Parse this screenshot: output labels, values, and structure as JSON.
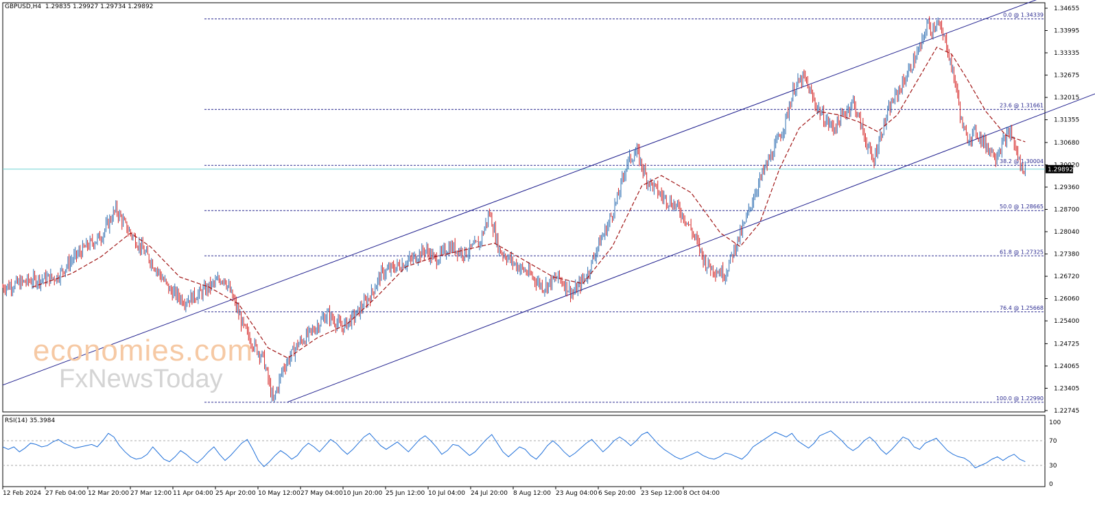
{
  "header": {
    "symbol": "GBPUSD,H4",
    "open": "1.29835",
    "high": "1.29927",
    "low": "1.29734",
    "close": "1.29892"
  },
  "watermark": {
    "line1": "economies.com",
    "line2": "FxNewsToday"
  },
  "rsi": {
    "label": "RSI(14) 35.3984"
  },
  "chart_data": [
    {
      "type": "candlestick",
      "title": "GBPUSD,H4 1.29835 1.29927 1.29734 1.29892",
      "ylim": [
        1.22745,
        1.34655
      ],
      "y_ticks": [
        "1.34655",
        "1.33995",
        "1.33335",
        "1.32675",
        "1.32015",
        "1.31355",
        "1.30680",
        "1.30020",
        "1.29360",
        "1.28700",
        "1.28040",
        "1.27380",
        "1.26720",
        "1.26060",
        "1.25400",
        "1.24725",
        "1.24065",
        "1.23405",
        "1.22745"
      ],
      "x_labels": [
        "12 Feb 2024",
        "27 Feb 04:00",
        "12 Mar 20:00",
        "27 Mar 12:00",
        "11 Apr 04:00",
        "25 Apr 20:00",
        "10 May 12:00",
        "27 May 04:00",
        "10 Jun 20:00",
        "25 Jun 12:00",
        "10 Jul 04:00",
        "24 Jul 20:00",
        "8 Aug 12:00",
        "23 Aug 04:00",
        "6 Sep 20:00",
        "23 Sep 12:00",
        "8 Oct 04:00"
      ],
      "current_price": "1.29892",
      "price_path": [
        {
          "x": 0,
          "y": 1.264
        },
        {
          "x": 6,
          "y": 1.266
        },
        {
          "x": 11,
          "y": 1.267
        },
        {
          "x": 14,
          "y": 1.272
        },
        {
          "x": 17,
          "y": 1.276
        },
        {
          "x": 20,
          "y": 1.279
        },
        {
          "x": 23,
          "y": 1.287
        },
        {
          "x": 25,
          "y": 1.282
        },
        {
          "x": 28,
          "y": 1.276
        },
        {
          "x": 31,
          "y": 1.27
        },
        {
          "x": 34,
          "y": 1.263
        },
        {
          "x": 37,
          "y": 1.26
        },
        {
          "x": 40,
          "y": 1.262
        },
        {
          "x": 43,
          "y": 1.265
        },
        {
          "x": 45,
          "y": 1.267
        },
        {
          "x": 47,
          "y": 1.26
        },
        {
          "x": 49,
          "y": 1.252
        },
        {
          "x": 51,
          "y": 1.247
        },
        {
          "x": 53,
          "y": 1.243
        },
        {
          "x": 55,
          "y": 1.23
        },
        {
          "x": 57,
          "y": 1.24
        },
        {
          "x": 60,
          "y": 1.247
        },
        {
          "x": 63,
          "y": 1.251
        },
        {
          "x": 66,
          "y": 1.256
        },
        {
          "x": 69,
          "y": 1.252
        },
        {
          "x": 72,
          "y": 1.256
        },
        {
          "x": 75,
          "y": 1.262
        },
        {
          "x": 77,
          "y": 1.268
        },
        {
          "x": 80,
          "y": 1.27
        },
        {
          "x": 83,
          "y": 1.272
        },
        {
          "x": 86,
          "y": 1.275
        },
        {
          "x": 88,
          "y": 1.272
        },
        {
          "x": 91,
          "y": 1.276
        },
        {
          "x": 94,
          "y": 1.274
        },
        {
          "x": 97,
          "y": 1.277
        },
        {
          "x": 99,
          "y": 1.286
        },
        {
          "x": 101,
          "y": 1.275
        },
        {
          "x": 104,
          "y": 1.271
        },
        {
          "x": 107,
          "y": 1.268
        },
        {
          "x": 110,
          "y": 1.264
        },
        {
          "x": 113,
          "y": 1.267
        },
        {
          "x": 116,
          "y": 1.262
        },
        {
          "x": 119,
          "y": 1.268
        },
        {
          "x": 121,
          "y": 1.276
        },
        {
          "x": 123,
          "y": 1.282
        },
        {
          "x": 125,
          "y": 1.29
        },
        {
          "x": 127,
          "y": 1.301
        },
        {
          "x": 129,
          "y": 1.304
        },
        {
          "x": 131,
          "y": 1.296
        },
        {
          "x": 134,
          "y": 1.291
        },
        {
          "x": 137,
          "y": 1.288
        },
        {
          "x": 139,
          "y": 1.284
        },
        {
          "x": 141,
          "y": 1.278
        },
        {
          "x": 143,
          "y": 1.271
        },
        {
          "x": 145,
          "y": 1.269
        },
        {
          "x": 147,
          "y": 1.268
        },
        {
          "x": 149,
          "y": 1.276
        },
        {
          "x": 151,
          "y": 1.283
        },
        {
          "x": 153,
          "y": 1.292
        },
        {
          "x": 155,
          "y": 1.299
        },
        {
          "x": 157,
          "y": 1.305
        },
        {
          "x": 159,
          "y": 1.312
        },
        {
          "x": 161,
          "y": 1.323
        },
        {
          "x": 163,
          "y": 1.326
        },
        {
          "x": 165,
          "y": 1.319
        },
        {
          "x": 167,
          "y": 1.314
        },
        {
          "x": 169,
          "y": 1.311
        },
        {
          "x": 171,
          "y": 1.315
        },
        {
          "x": 173,
          "y": 1.319
        },
        {
          "x": 175,
          "y": 1.31
        },
        {
          "x": 177,
          "y": 1.301
        },
        {
          "x": 179,
          "y": 1.311
        },
        {
          "x": 181,
          "y": 1.319
        },
        {
          "x": 183,
          "y": 1.324
        },
        {
          "x": 185,
          "y": 1.33
        },
        {
          "x": 187,
          "y": 1.336
        },
        {
          "x": 188,
          "y": 1.342
        },
        {
          "x": 189,
          "y": 1.34
        },
        {
          "x": 190,
          "y": 1.343
        },
        {
          "x": 191,
          "y": 1.339
        },
        {
          "x": 192,
          "y": 1.336
        },
        {
          "x": 193,
          "y": 1.329
        },
        {
          "x": 194,
          "y": 1.323
        },
        {
          "x": 195,
          "y": 1.313
        },
        {
          "x": 196,
          "y": 1.308
        },
        {
          "x": 198,
          "y": 1.31
        },
        {
          "x": 200,
          "y": 1.306
        },
        {
          "x": 202,
          "y": 1.303
        },
        {
          "x": 204,
          "y": 1.308
        },
        {
          "x": 205,
          "y": 1.31
        },
        {
          "x": 206,
          "y": 1.305
        },
        {
          "x": 207,
          "y": 1.3
        },
        {
          "x": 208,
          "y": 1.2989
        }
      ],
      "moving_average": [
        {
          "x": 6,
          "y": 1.264
        },
        {
          "x": 14,
          "y": 1.268
        },
        {
          "x": 20,
          "y": 1.273
        },
        {
          "x": 26,
          "y": 1.28
        },
        {
          "x": 30,
          "y": 1.276
        },
        {
          "x": 36,
          "y": 1.267
        },
        {
          "x": 42,
          "y": 1.264
        },
        {
          "x": 48,
          "y": 1.259
        },
        {
          "x": 54,
          "y": 1.246
        },
        {
          "x": 58,
          "y": 1.243
        },
        {
          "x": 64,
          "y": 1.249
        },
        {
          "x": 70,
          "y": 1.253
        },
        {
          "x": 76,
          "y": 1.261
        },
        {
          "x": 82,
          "y": 1.27
        },
        {
          "x": 88,
          "y": 1.273
        },
        {
          "x": 94,
          "y": 1.275
        },
        {
          "x": 100,
          "y": 1.277
        },
        {
          "x": 106,
          "y": 1.272
        },
        {
          "x": 112,
          "y": 1.267
        },
        {
          "x": 118,
          "y": 1.265
        },
        {
          "x": 124,
          "y": 1.276
        },
        {
          "x": 130,
          "y": 1.294
        },
        {
          "x": 134,
          "y": 1.297
        },
        {
          "x": 140,
          "y": 1.292
        },
        {
          "x": 146,
          "y": 1.28
        },
        {
          "x": 150,
          "y": 1.276
        },
        {
          "x": 154,
          "y": 1.283
        },
        {
          "x": 158,
          "y": 1.299
        },
        {
          "x": 162,
          "y": 1.311
        },
        {
          "x": 166,
          "y": 1.316
        },
        {
          "x": 170,
          "y": 1.315
        },
        {
          "x": 174,
          "y": 1.313
        },
        {
          "x": 178,
          "y": 1.31
        },
        {
          "x": 182,
          "y": 1.315
        },
        {
          "x": 186,
          "y": 1.325
        },
        {
          "x": 190,
          "y": 1.335
        },
        {
          "x": 193,
          "y": 1.333
        },
        {
          "x": 196,
          "y": 1.326
        },
        {
          "x": 200,
          "y": 1.316
        },
        {
          "x": 204,
          "y": 1.309
        },
        {
          "x": 208,
          "y": 1.307
        }
      ],
      "fibonacci_levels": [
        {
          "label": "0.0 @ 1.34339",
          "price": 1.34339
        },
        {
          "label": "23.6 @ 1.31661",
          "price": 1.31661
        },
        {
          "label": "38.2 @ 1.30004",
          "price": 1.30004
        },
        {
          "label": "50.0 @ 1.28665",
          "price": 1.28665
        },
        {
          "label": "61.8 @ 1.27325",
          "price": 1.27325
        },
        {
          "label": "76.4 @ 1.25668",
          "price": 1.25668
        },
        {
          "label": "100.0 @ 1.22990",
          "price": 1.2299
        }
      ],
      "channel_upper": [
        {
          "x": 0,
          "y": 1.235
        },
        {
          "x": 212,
          "y": 1.35
        }
      ],
      "channel_lower": [
        {
          "x": 58,
          "y": 1.23
        },
        {
          "x": 274,
          "y": 1.35
        }
      ],
      "colors": {
        "up": "#2b6cb0",
        "down": "#d42020",
        "ma": "#a01414",
        "channel": "#1c1c8c",
        "fib": "#2a2a90",
        "current": "#6fd2d2"
      }
    },
    {
      "type": "line",
      "title": "RSI(14) 35.3984",
      "ylim": [
        0,
        100
      ],
      "y_ticks": [
        "100",
        "70",
        "30",
        "0"
      ],
      "reference_levels": [
        70,
        30
      ],
      "current_value": 35.3984,
      "series": [
        {
          "values": [
            60,
            56,
            60,
            52,
            58,
            66,
            64,
            60,
            62,
            68,
            72,
            66,
            62,
            58,
            60,
            62,
            64,
            60,
            70,
            82,
            76,
            62,
            52,
            44,
            40,
            42,
            48,
            60,
            50,
            40,
            36,
            44,
            54,
            48,
            40,
            34,
            42,
            52,
            60,
            48,
            38,
            46,
            56,
            66,
            72,
            56,
            38,
            28,
            36,
            46,
            54,
            48,
            40,
            46,
            58,
            66,
            60,
            52,
            62,
            72,
            66,
            56,
            48,
            56,
            66,
            76,
            82,
            72,
            62,
            56,
            62,
            68,
            60,
            52,
            62,
            72,
            78,
            70,
            60,
            48,
            54,
            64,
            62,
            54,
            46,
            52,
            62,
            72,
            80,
            66,
            52,
            44,
            52,
            60,
            56,
            46,
            40,
            50,
            62,
            70,
            62,
            52,
            44,
            50,
            58,
            66,
            72,
            62,
            52,
            60,
            70,
            76,
            70,
            62,
            70,
            80,
            84,
            74,
            64,
            56,
            50,
            44,
            40,
            44,
            48,
            52,
            46,
            42,
            40,
            44,
            50,
            48,
            44,
            40,
            48,
            60,
            66,
            72,
            78,
            84,
            80,
            76,
            82,
            70,
            64,
            58,
            66,
            78,
            82,
            86,
            78,
            70,
            60,
            54,
            60,
            70,
            76,
            68,
            56,
            48,
            56,
            66,
            76,
            72,
            60,
            56,
            66,
            70,
            74,
            64,
            54,
            48,
            44,
            42,
            36,
            26,
            30,
            34,
            40,
            44,
            38,
            44,
            48,
            40,
            36
          ],
          "color": "#1e6fd9"
        }
      ]
    }
  ]
}
